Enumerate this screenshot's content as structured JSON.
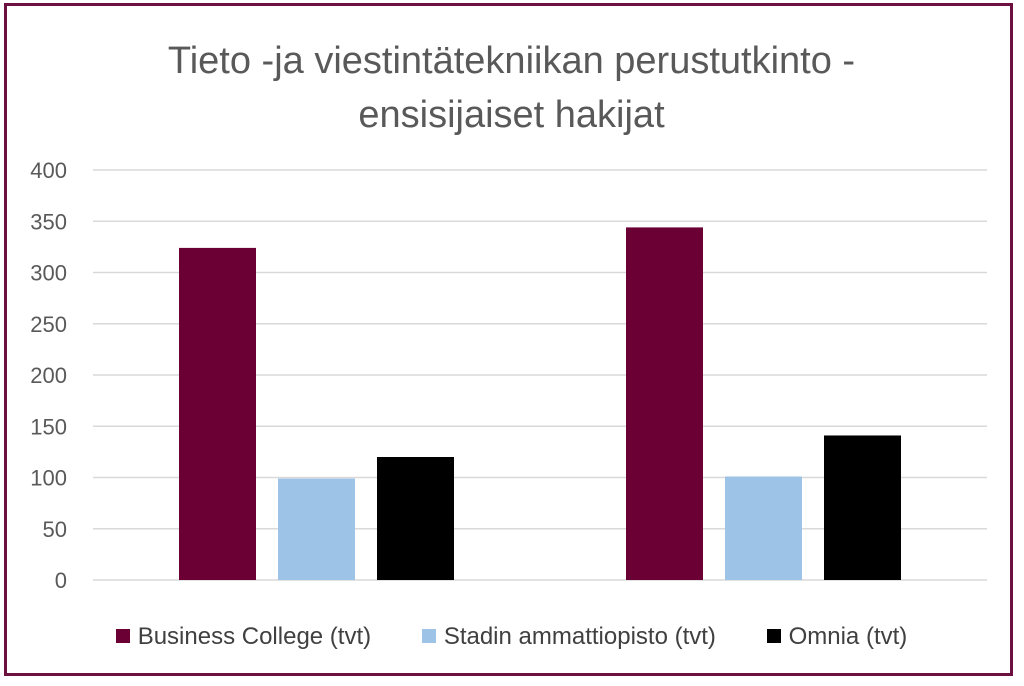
{
  "chart_data": {
    "type": "bar",
    "title_lines": [
      "Tieto -ja viestintätekniikan perustutkinto -",
      "ensisijaiset hakijat"
    ],
    "categories": [
      "",
      ""
    ],
    "series": [
      {
        "name": "Business College (tvt)",
        "color": "#6b0035",
        "values": [
          324,
          344
        ]
      },
      {
        "name": "Stadin ammattiopisto (tvt)",
        "color": "#9dc3e6",
        "values": [
          99,
          101
        ]
      },
      {
        "name": "Omnia (tvt)",
        "color": "#000000",
        "values": [
          120,
          141
        ]
      }
    ],
    "ylim": [
      0,
      400
    ],
    "yticks": [
      0,
      50,
      100,
      150,
      200,
      250,
      300,
      350,
      400
    ],
    "grid": true,
    "legend_position": "bottom"
  }
}
